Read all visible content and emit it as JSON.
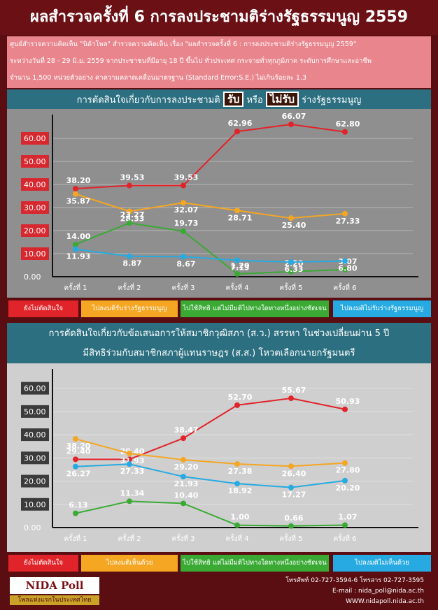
{
  "header": {
    "title": "ผลสำรวจครั้งที่ 6 การลงประชามติร่างรัฐธรรมนูญ 2559",
    "intro": [
      "ศูนย์สำรวจความคิดเห็น \"นิด้าโพล\" สำรวจความคิดเห็น เรื่อง \"ผลสำรวจครั้งที่ 6 : การลงประชามติร่างรัฐธรรมนูญ 2559\"",
      "ระหว่างวันที่ 28 - 29 มิ.ย. 2559 จากประชาชนที่มีอายุ 18 ปี ขึ้นไป ทั่วประเทศ กระจายทั่วทุกภูมิภาค ระดับการศึกษาและอาชีพ",
      "จำนวน 1,500 หน่วยตัวอย่าง ค่าความคลาดเคลื่อนมาตรฐาน (Standard Error:S.E.) ไม่เกินร้อยละ 1.3"
    ]
  },
  "chart_data": [
    {
      "type": "line",
      "title_parts": [
        "การตัดสินใจเกี่ยวกับการลงประชามติ",
        "รับ",
        "หรือ",
        "ไม่รับ",
        "ร่างรัฐธรรมนูญ"
      ],
      "categories": [
        "ครั้งที่ 1",
        "ครั้งที่ 2",
        "ครั้งที่ 3",
        "ครั้งที่ 4",
        "ครั้งที่ 5",
        "ครั้งที่ 6"
      ],
      "ylim": [
        0,
        70
      ],
      "yticks": [
        {
          "value": 0,
          "label": "0.00"
        },
        {
          "value": 10,
          "label": "10.00"
        },
        {
          "value": 20,
          "label": "20.00"
        },
        {
          "value": 30,
          "label": "30.00"
        },
        {
          "value": 40,
          "label": "40.00"
        },
        {
          "value": 50,
          "label": "50.00"
        },
        {
          "value": 60,
          "label": "60.00"
        }
      ],
      "grid": true,
      "series": [
        {
          "name": "ยังไม่ตัดสินใจ",
          "color": "#e0242a",
          "values": [
            38.2,
            39.53,
            39.53,
            62.96,
            66.07,
            62.8
          ],
          "value_labels": [
            "38.20",
            "39.53",
            "39.53",
            "62.96",
            "66.07",
            "62.80"
          ]
        },
        {
          "name": "ไปลงมติรับร่างรัฐธรรมนูญ",
          "color": "#f5a623",
          "values": [
            35.87,
            28.33,
            32.07,
            28.71,
            25.4,
            27.33
          ],
          "value_labels": [
            "35.87",
            "28.33",
            "32.07",
            "28.71",
            "25.40",
            "27.33"
          ]
        },
        {
          "name": "ไปใช้สิทธิ แต่ไม่มีมติไปทางใดทางหนึ่งอย่างชัดเจน",
          "color": "#3aaa35",
          "values": [
            14.0,
            23.27,
            19.73,
            1.2,
            2.2,
            3.07
          ],
          "value_labels": [
            "14.00",
            "23.27",
            "19.73",
            "1.20",
            "2.20",
            "3.07"
          ]
        },
        {
          "name": "ไปลงมติไม่รับร่างรัฐธรรมนูญ",
          "color": "#27aae1",
          "values": [
            11.93,
            8.87,
            8.67,
            7.13,
            6.33,
            6.8
          ],
          "value_labels": [
            "11.93",
            "8.87",
            "8.67",
            "7.13",
            "6.33",
            "6.80"
          ]
        }
      ]
    },
    {
      "type": "line",
      "title_lines": [
        "การตัดสินใจเกี่ยวกับข้อเสนอการให้สมาชิกวุฒิสภา (ส.ว.) สรรหา ในช่วงเปลี่ยนผ่าน 5 ปี",
        "มีสิทธิร่วมกับสมาชิกสภาผู้แทนราษฎร (ส.ส.) โหวตเลือกนายกรัฐมนตรี"
      ],
      "categories": [
        "ครั้งที่ 1",
        "ครั้งที่ 2",
        "ครั้งที่ 3",
        "ครั้งที่ 4",
        "ครั้งที่ 5",
        "ครั้งที่ 6"
      ],
      "ylim": [
        0,
        62
      ],
      "yticks": [
        {
          "value": 0,
          "label": "0.00"
        },
        {
          "value": 10,
          "label": "10.00"
        },
        {
          "value": 20,
          "label": "20.00"
        },
        {
          "value": 30,
          "label": "30.00"
        },
        {
          "value": 40,
          "label": "40.00"
        },
        {
          "value": 50,
          "label": "50.00"
        },
        {
          "value": 60,
          "label": "60.00"
        }
      ],
      "grid": true,
      "series": [
        {
          "name": "ยังไม่ตัดสินใจ",
          "color": "#e0242a",
          "values": [
            29.4,
            29.4,
            38.47,
            52.7,
            55.67,
            50.93
          ],
          "value_labels": [
            "29.40",
            "29.40",
            "38.47",
            "52.70",
            "55.67",
            "50.93"
          ]
        },
        {
          "name": "ไปลงมติเห็นด้วย",
          "color": "#f5a623",
          "values": [
            38.2,
            31.93,
            29.2,
            27.38,
            26.4,
            27.8
          ],
          "value_labels": [
            "38.20",
            "31.93",
            "29.20",
            "27.38",
            "26.40",
            "27.80"
          ]
        },
        {
          "name": "ไปใช้สิทธิ แต่ไม่มีมติไปทางใดทางหนึ่งอย่างชัดเจน",
          "color": "#3aaa35",
          "values": [
            6.13,
            11.34,
            10.4,
            1.0,
            0.66,
            1.07
          ],
          "value_labels": [
            "6.13",
            "11.34",
            "10.40",
            "1.00",
            "0.66",
            "1.07"
          ]
        },
        {
          "name": "ไปลงมติไม่เห็นด้วย",
          "color": "#27aae1",
          "values": [
            26.27,
            27.33,
            21.93,
            18.92,
            17.27,
            20.2
          ],
          "value_labels": [
            "26.27",
            "27.33",
            "21.93",
            "18.92",
            "17.27",
            "20.20"
          ]
        }
      ]
    }
  ],
  "footer": {
    "logo": "NIDA Poll",
    "slogan": "โพลแห่งแรกในประเทศไทย",
    "contact": [
      "โทรศัพท์ 02-727-3594-6 โทรสาร 02-727-3595",
      "E-mail : nida_poll@nida.ac.th",
      "WWW.nidapoll.nida.ac.th"
    ]
  }
}
